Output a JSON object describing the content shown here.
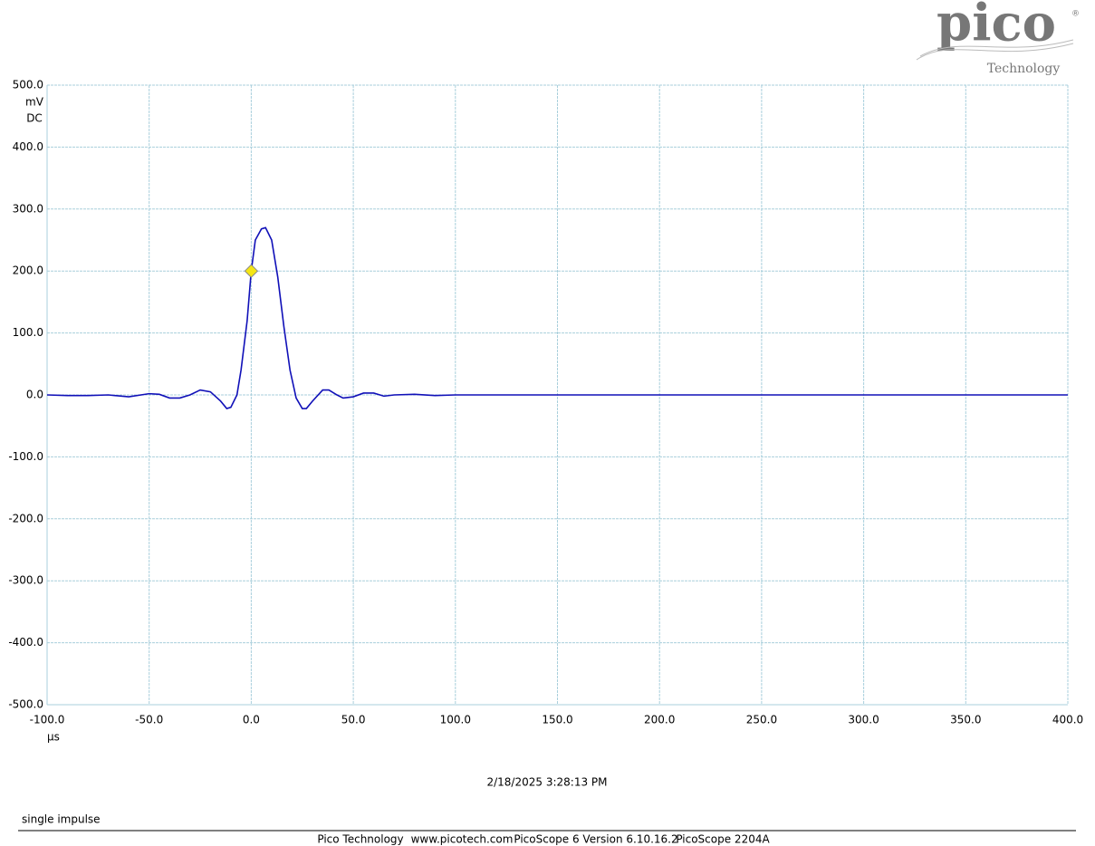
{
  "chart_data": {
    "type": "line",
    "logo": {
      "brand": "pico",
      "registered": "®",
      "sub": "Technology"
    },
    "y_unit": "mV",
    "coupling": "DC",
    "x_unit": "µs",
    "timestamp": "2/18/2025 3:28:13 PM",
    "note": "single impulse",
    "footer": [
      "Pico Technology",
      "www.picotech.com",
      "PicoScope 6 Version 6.10.16.2",
      "PicoScope 2204A"
    ],
    "xlim": [
      -100,
      400
    ],
    "ylim": [
      -500,
      500
    ],
    "xticks": [
      {
        "value": -100,
        "label": "-100.0"
      },
      {
        "value": -50,
        "label": "-50.0"
      },
      {
        "value": 0,
        "label": "0.0"
      },
      {
        "value": 50,
        "label": "50.0"
      },
      {
        "value": 100,
        "label": "100.0"
      },
      {
        "value": 150,
        "label": "150.0"
      },
      {
        "value": 200,
        "label": "200.0"
      },
      {
        "value": 250,
        "label": "250.0"
      },
      {
        "value": 300,
        "label": "300.0"
      },
      {
        "value": 350,
        "label": "350.0"
      },
      {
        "value": 400,
        "label": "400.0"
      }
    ],
    "yticks": [
      {
        "value": 500,
        "label": "500.0"
      },
      {
        "value": 400,
        "label": "400.0"
      },
      {
        "value": 300,
        "label": "300.0"
      },
      {
        "value": 200,
        "label": "200.0"
      },
      {
        "value": 100,
        "label": "100.0"
      },
      {
        "value": 0,
        "label": "0.0"
      },
      {
        "value": -100,
        "label": "-100.0"
      },
      {
        "value": -200,
        "label": "-200.0"
      },
      {
        "value": -300,
        "label": "-300.0"
      },
      {
        "value": -400,
        "label": "-400.0"
      },
      {
        "value": -500,
        "label": "-500.0"
      }
    ],
    "grid": true,
    "x": [
      -100,
      -90,
      -80,
      -70,
      -60,
      -50,
      -45,
      -40,
      -35,
      -30,
      -25,
      -20,
      -15,
      -12,
      -10,
      -7,
      -5,
      -2,
      0,
      2,
      5,
      7,
      10,
      13,
      16,
      19,
      22,
      25,
      27,
      30,
      35,
      38,
      42,
      45,
      50,
      55,
      60,
      65,
      70,
      80,
      90,
      100,
      125,
      150,
      200,
      250,
      300,
      350,
      400
    ],
    "series": [
      {
        "color": "#1010b8",
        "values": [
          0,
          -1,
          -1,
          0,
          -3,
          2,
          1,
          -5,
          -5,
          0,
          8,
          5,
          -10,
          -22,
          -20,
          0,
          40,
          120,
          200,
          250,
          268,
          270,
          250,
          190,
          110,
          40,
          -5,
          -22,
          -22,
          -10,
          8,
          8,
          0,
          -5,
          -3,
          3,
          3,
          -2,
          0,
          1,
          -1,
          0,
          0,
          0,
          0,
          0,
          0,
          0,
          0
        ]
      }
    ],
    "trigger": {
      "x": 0,
      "y": 200,
      "color": "#f5e614"
    }
  }
}
